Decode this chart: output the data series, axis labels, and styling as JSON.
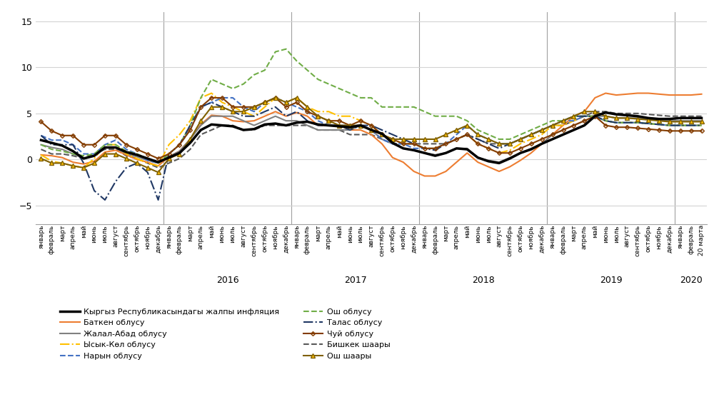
{
  "ylim": [
    -7,
    16
  ],
  "yticks": [
    -5,
    0,
    5,
    10,
    15
  ],
  "background_color": "#ffffff",
  "months_ru": [
    "январь",
    "февраль",
    "март",
    "апрель",
    "май",
    "июнь",
    "июль",
    "август",
    "сентябрь",
    "октябрь",
    "ноябрь",
    "декабрь"
  ],
  "last_label": "20 марта",
  "grid_color": "#D3D3D3",
  "series": [
    {
      "name": "Кыргыз Республикасындагы жалпы инфляция",
      "color": "#000000",
      "linewidth": 2.5,
      "linestyle": "-",
      "marker": null,
      "markersize": 0,
      "zorder": 10,
      "values": [
        2.1,
        1.8,
        1.5,
        0.9,
        0.1,
        0.4,
        1.3,
        1.3,
        0.8,
        0.5,
        0.1,
        -0.3,
        0.2,
        0.7,
        1.8,
        3.2,
        3.8,
        3.7,
        3.6,
        3.2,
        3.3,
        3.8,
        3.9,
        3.7,
        4.0,
        4.1,
        3.8,
        3.7,
        3.6,
        3.5,
        3.7,
        3.2,
        2.8,
        1.8,
        1.2,
        1.0,
        0.7,
        0.4,
        0.7,
        1.2,
        1.1,
        0.2,
        -0.2,
        -0.4,
        0.1,
        0.7,
        1.1,
        1.7,
        2.2,
        2.7,
        3.2,
        3.7,
        4.7,
        5.1,
        4.9,
        4.8,
        4.7,
        4.5,
        4.4,
        4.4,
        4.5,
        4.5,
        4.5
      ]
    },
    {
      "name": "Баткен облусу",
      "color": "#ED7D31",
      "linewidth": 1.5,
      "linestyle": "-",
      "marker": null,
      "markersize": 0,
      "zorder": 5,
      "values": [
        0.5,
        0.4,
        0.2,
        -0.3,
        -0.5,
        -0.2,
        0.8,
        1.0,
        0.5,
        0.0,
        -0.3,
        -0.7,
        0.3,
        0.9,
        2.2,
        3.8,
        4.8,
        4.7,
        4.2,
        4.1,
        4.2,
        4.7,
        5.2,
        4.7,
        5.1,
        4.7,
        3.7,
        3.7,
        3.7,
        3.2,
        3.2,
        2.7,
        1.7,
        0.2,
        -0.3,
        -1.3,
        -1.8,
        -1.8,
        -1.3,
        -0.3,
        0.7,
        -0.3,
        -0.8,
        -1.3,
        -0.8,
        -0.1,
        0.7,
        1.7,
        2.7,
        3.7,
        4.7,
        5.2,
        6.7,
        7.2,
        7.0,
        7.1,
        7.2,
        7.2,
        7.1,
        7.0,
        7.0,
        7.0,
        7.1
      ]
    },
    {
      "name": "Жалал-Абад облусу",
      "color": "#808080",
      "linewidth": 1.5,
      "linestyle": "-",
      "marker": null,
      "markersize": 0,
      "zorder": 5,
      "values": [
        1.6,
        1.3,
        1.1,
        0.6,
        0.1,
        0.4,
        1.3,
        1.3,
        0.6,
        0.3,
        -0.1,
        -0.4,
        0.3,
        0.9,
        2.2,
        3.7,
        4.7,
        4.7,
        4.7,
        4.2,
        3.7,
        4.2,
        4.7,
        4.2,
        4.2,
        3.7,
        3.2,
        3.2,
        3.2,
        3.2,
        3.7,
        3.2,
        2.2,
        1.7,
        1.2,
        1.0,
        0.7,
        0.5,
        0.7,
        1.2,
        1.2,
        0.2,
        -0.1,
        -0.3,
        0.2,
        0.7,
        1.2,
        1.7,
        2.7,
        3.2,
        3.7,
        4.2,
        4.7,
        4.7,
        4.5,
        4.5,
        4.5,
        4.4,
        4.3,
        4.2,
        4.2,
        4.2,
        4.2
      ]
    },
    {
      "name": "Ысык-Көл облусу",
      "color": "#FFC000",
      "linewidth": 1.5,
      "linestyle": "-.",
      "marker": null,
      "markersize": 0,
      "zorder": 5,
      "values": [
        0.5,
        -0.2,
        -0.4,
        -0.7,
        -0.9,
        0.1,
        1.6,
        1.6,
        0.6,
        0.1,
        -0.4,
        -0.7,
        1.6,
        2.7,
        4.2,
        6.7,
        7.2,
        6.2,
        5.7,
        5.2,
        4.7,
        5.7,
        6.7,
        6.2,
        6.7,
        5.7,
        5.2,
        5.2,
        4.7,
        4.7,
        4.2,
        3.7,
        2.7,
        2.2,
        1.7,
        1.7,
        1.2,
        1.2,
        1.7,
        2.2,
        2.7,
        1.7,
        1.2,
        0.7,
        1.0,
        1.7,
        2.2,
        2.7,
        3.7,
        3.7,
        4.2,
        4.7,
        4.7,
        4.2,
        4.0,
        4.0,
        4.0,
        3.9,
        3.8,
        3.7,
        3.7,
        3.7,
        3.7
      ]
    },
    {
      "name": "Нарын облусу",
      "color": "#4472C4",
      "linewidth": 1.5,
      "linestyle": "--",
      "marker": null,
      "markersize": 0,
      "zorder": 5,
      "values": [
        2.6,
        2.1,
        2.1,
        1.6,
        0.6,
        0.6,
        1.6,
        2.1,
        1.1,
        0.6,
        -0.1,
        -0.4,
        0.6,
        1.6,
        3.2,
        5.7,
        6.2,
        6.7,
        6.7,
        5.7,
        5.2,
        6.2,
        6.7,
        6.2,
        5.7,
        5.2,
        4.2,
        3.7,
        3.7,
        3.7,
        3.7,
        3.2,
        2.2,
        1.7,
        1.7,
        1.2,
        1.2,
        1.2,
        1.7,
        2.7,
        3.7,
        2.7,
        2.2,
        1.7,
        1.7,
        2.2,
        2.7,
        3.2,
        3.7,
        4.2,
        4.2,
        4.7,
        4.7,
        4.2,
        4.0,
        4.0,
        4.0,
        3.9,
        3.8,
        3.7,
        3.7,
        3.7,
        3.7
      ]
    },
    {
      "name": "Ош облусу",
      "color": "#70AD47",
      "linewidth": 1.5,
      "linestyle": "--",
      "marker": null,
      "markersize": 0,
      "zorder": 5,
      "values": [
        1.6,
        1.1,
        0.9,
        0.6,
        0.4,
        0.6,
        1.6,
        1.6,
        0.9,
        0.6,
        0.1,
        -0.4,
        0.6,
        1.6,
        3.7,
        6.7,
        8.7,
        8.2,
        7.7,
        8.2,
        9.2,
        9.7,
        11.7,
        12.0,
        10.7,
        9.7,
        8.7,
        8.2,
        7.7,
        7.2,
        6.7,
        6.7,
        5.7,
        5.7,
        5.7,
        5.7,
        5.2,
        4.7,
        4.7,
        4.7,
        4.2,
        3.2,
        2.7,
        2.2,
        2.2,
        2.7,
        3.2,
        3.7,
        4.2,
        4.2,
        4.7,
        4.7,
        4.7,
        4.2,
        4.0,
        4.0,
        4.0,
        3.9,
        3.8,
        3.7,
        3.7,
        3.7,
        3.7
      ]
    },
    {
      "name": "Талас облусу",
      "color": "#203864",
      "linewidth": 1.5,
      "linestyle": "-.",
      "marker": null,
      "markersize": 0,
      "zorder": 5,
      "values": [
        2.6,
        1.6,
        1.6,
        1.6,
        -0.4,
        -3.4,
        -4.4,
        -2.4,
        -0.9,
        -0.4,
        -1.4,
        -4.4,
        0.6,
        1.6,
        3.7,
        5.7,
        6.2,
        5.7,
        5.2,
        4.7,
        4.7,
        5.2,
        5.7,
        4.7,
        5.2,
        4.2,
        3.7,
        3.7,
        3.7,
        3.2,
        3.7,
        3.7,
        3.2,
        2.7,
        2.2,
        1.7,
        1.2,
        1.0,
        1.7,
        2.2,
        2.7,
        2.2,
        1.7,
        1.2,
        1.7,
        2.2,
        2.7,
        3.2,
        3.7,
        4.2,
        4.7,
        4.7,
        4.7,
        4.2,
        4.0,
        4.0,
        4.0,
        3.9,
        3.8,
        3.7,
        3.7,
        3.7,
        3.7
      ]
    },
    {
      "name": "Чуй облусу",
      "color": "#833C00",
      "linewidth": 1.5,
      "linestyle": "-",
      "marker": "D",
      "markersize": 3,
      "markerfacecolor": "none",
      "markevery": 1,
      "zorder": 5,
      "values": [
        4.1,
        3.1,
        2.6,
        2.6,
        1.6,
        1.6,
        2.6,
        2.6,
        1.6,
        1.1,
        0.6,
        0.1,
        0.6,
        1.6,
        3.2,
        5.7,
        6.7,
        6.7,
        5.7,
        5.7,
        5.7,
        6.2,
        6.7,
        5.7,
        6.2,
        5.2,
        4.7,
        4.2,
        4.2,
        3.7,
        4.2,
        3.7,
        2.7,
        2.2,
        1.7,
        1.7,
        1.2,
        1.2,
        1.7,
        2.2,
        2.7,
        1.7,
        1.2,
        0.7,
        0.7,
        1.2,
        1.7,
        2.2,
        2.7,
        3.2,
        3.7,
        4.2,
        4.7,
        3.7,
        3.5,
        3.5,
        3.4,
        3.3,
        3.2,
        3.1,
        3.1,
        3.1,
        3.1
      ]
    },
    {
      "name": "Бишкек шаары",
      "color": "#595959",
      "linewidth": 1.5,
      "linestyle": "--",
      "marker": null,
      "markersize": 0,
      "zorder": 4,
      "values": [
        1.1,
        0.6,
        0.6,
        0.4,
        0.1,
        0.6,
        1.1,
        1.1,
        0.4,
        0.1,
        -0.4,
        -0.9,
        -0.4,
        0.1,
        1.1,
        2.7,
        3.2,
        3.7,
        3.7,
        3.2,
        3.2,
        3.7,
        3.7,
        3.7,
        3.7,
        3.7,
        3.2,
        3.2,
        3.2,
        2.7,
        2.7,
        2.7,
        2.2,
        1.7,
        1.7,
        1.7,
        1.7,
        1.7,
        1.7,
        2.2,
        2.7,
        2.2,
        1.7,
        1.7,
        1.7,
        2.2,
        2.7,
        3.2,
        3.7,
        3.7,
        4.2,
        4.7,
        5.2,
        5.2,
        5.0,
        5.0,
        5.0,
        4.9,
        4.8,
        4.7,
        4.7,
        4.7,
        4.7
      ]
    },
    {
      "name": "Ош шаары",
      "color": "#806000",
      "linewidth": 1.5,
      "linestyle": "-",
      "marker": "^",
      "markersize": 4,
      "markerfacecolor": "#FFC000",
      "markevery": 1,
      "zorder": 5,
      "values": [
        0.1,
        -0.4,
        -0.4,
        -0.7,
        -0.9,
        -0.4,
        0.6,
        0.6,
        0.1,
        -0.4,
        -0.9,
        -1.4,
        0.1,
        0.6,
        2.2,
        4.2,
        5.7,
        5.7,
        5.2,
        5.2,
        5.7,
        6.2,
        6.7,
        6.2,
        6.7,
        5.7,
        4.7,
        4.2,
        3.7,
        3.7,
        3.7,
        3.2,
        2.7,
        2.2,
        2.2,
        2.2,
        2.2,
        2.2,
        2.7,
        3.2,
        3.7,
        2.7,
        2.2,
        1.7,
        1.7,
        2.2,
        2.7,
        3.2,
        3.7,
        4.2,
        4.7,
        5.2,
        5.2,
        4.7,
        4.5,
        4.5,
        4.4,
        4.3,
        4.2,
        4.1,
        4.1,
        4.1,
        4.1
      ]
    }
  ],
  "legend_order_left": [
    0,
    2,
    4,
    6,
    8
  ],
  "legend_order_right": [
    1,
    3,
    5,
    7,
    9
  ]
}
